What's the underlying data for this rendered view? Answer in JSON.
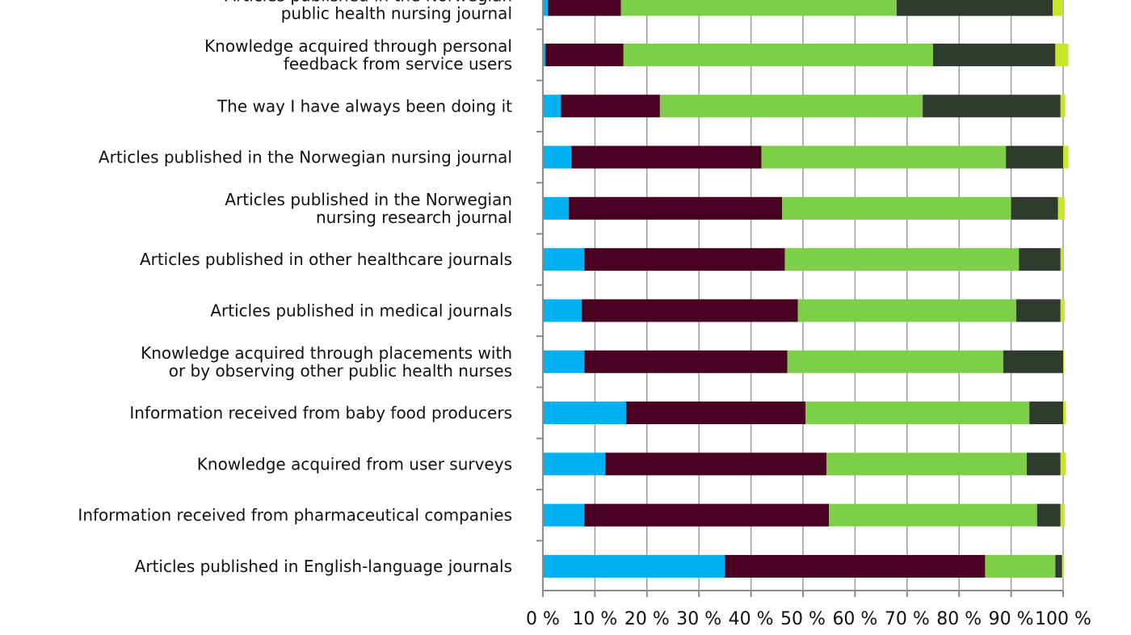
{
  "chart_data": {
    "type": "bar",
    "orientation": "horizontal",
    "stacked": true,
    "percent": true,
    "categories": [
      [
        "Articles published in the Norwegian",
        "public health nursing journal"
      ],
      [
        "Knowledge acquired through personal",
        "feedback from service users"
      ],
      [
        "The way I have always been doing it"
      ],
      [
        "Articles published in the Norwegian nursing journal"
      ],
      [
        "Articles published in the Norwegian",
        "nursing research journal"
      ],
      [
        "Articles published in other healthcare journals"
      ],
      [
        "Articles published in medical journals"
      ],
      [
        "Knowledge acquired through placements with",
        "or by observing other public health nurses"
      ],
      [
        "Information received from baby food producers"
      ],
      [
        "Knowledge acquired from user surveys"
      ],
      [
        "Information received from pharmaceutical companies"
      ],
      [
        "Articles published in English-language journals"
      ]
    ],
    "series": [
      {
        "color": "#00b0f0",
        "values": [
          1.0,
          0.5,
          3.5,
          5.5,
          5.0,
          8.0,
          7.5,
          8.0,
          16.0,
          12.0,
          8.0,
          35.0
        ]
      },
      {
        "color": "#4a0020",
        "values": [
          14.0,
          15.0,
          19.0,
          36.5,
          41.0,
          38.5,
          41.5,
          39.0,
          34.5,
          42.5,
          47.0,
          50.0
        ]
      },
      {
        "color": "#7ecf48",
        "values": [
          53.0,
          59.5,
          50.5,
          47.0,
          44.0,
          45.0,
          42.0,
          41.5,
          43.0,
          38.5,
          40.0,
          13.5
        ]
      },
      {
        "color": "#2e3b2e",
        "values": [
          30.0,
          23.5,
          26.5,
          11.0,
          9.0,
          8.0,
          8.5,
          11.5,
          6.5,
          6.5,
          4.5,
          1.3
        ]
      },
      {
        "color": "#c8e62a",
        "values": [
          2.0,
          2.5,
          0.9,
          1.0,
          1.3,
          0.5,
          0.8,
          0.2,
          0.5,
          1.0,
          0.8,
          0.3
        ]
      }
    ],
    "x_ticks": [
      "0 %",
      "10 %",
      "20 %",
      "30 %",
      "40 %",
      "50 %",
      "60 %",
      "70 %",
      "80 %",
      "90 %",
      "100 %"
    ],
    "xlim": [
      0,
      100
    ],
    "grid": true,
    "legend": false
  }
}
